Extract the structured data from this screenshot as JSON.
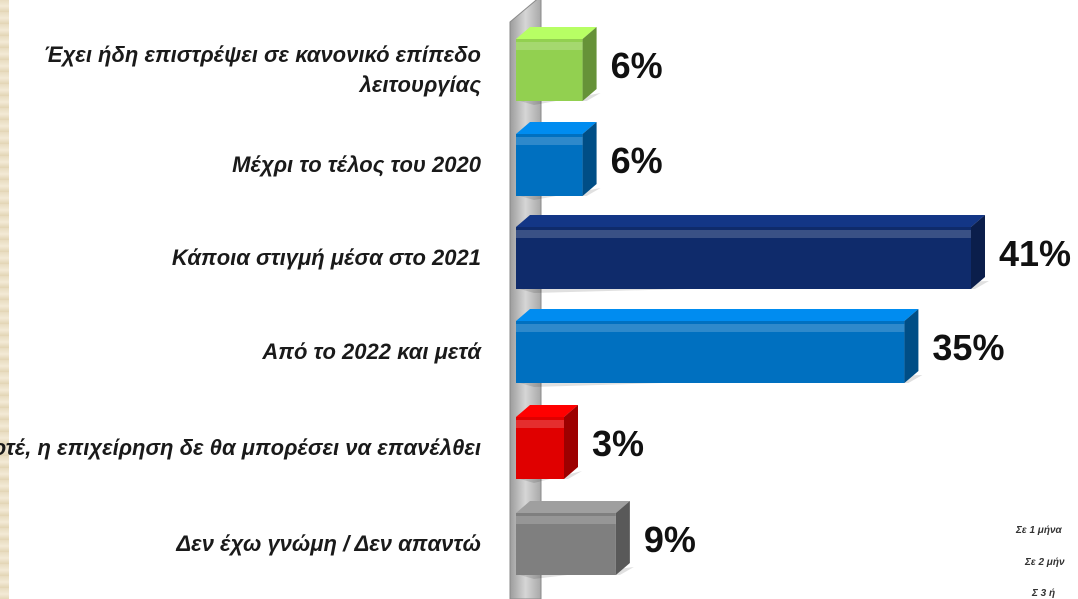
{
  "chart_data": {
    "type": "bar",
    "orientation": "horizontal",
    "categories": [
      "Έχει ήδη επιστρέψει σε κανονικό επίπεδο λειτουργίας",
      "Μέχρι το τέλος του 2020",
      "Κάποια στιγμή μέσα στο 2021",
      "Από το 2022 και μετά",
      "Ποτέ, η επιχείρηση δε θα μπορέσει να επανέλθει",
      "Δεν έχω γνώμη / Δεν απαντώ"
    ],
    "values": [
      6,
      6,
      41,
      35,
      3,
      9
    ],
    "value_labels": [
      "6%",
      "6%",
      "41%",
      "35%",
      "3%",
      "9%"
    ],
    "colors": [
      "#92d050",
      "#0070c0",
      "#0f2b6b",
      "#0070c0",
      "#e00000",
      "#7f7f7f"
    ],
    "xlim": [
      0,
      41
    ],
    "grid": false,
    "legend": "none"
  },
  "side_notes": [
    "Σε 1 μήνα",
    "Σε 2 μήν",
    "Σ  3  ή"
  ]
}
